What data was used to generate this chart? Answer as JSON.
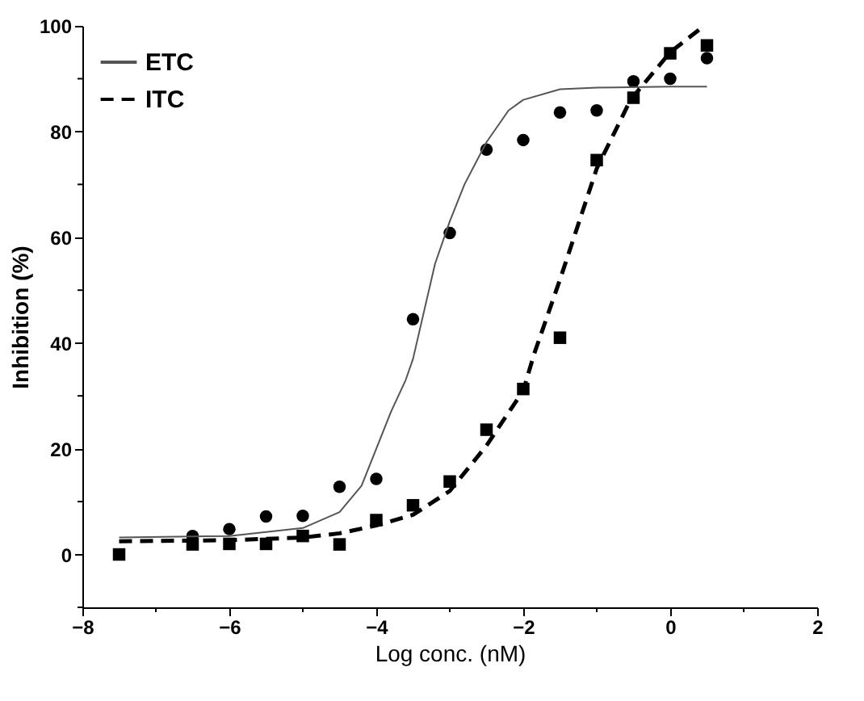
{
  "chart_data": {
    "type": "scatter",
    "xlabel": "Log conc. (nM)",
    "ylabel": "Inhibition (%)",
    "xlim": [
      -8,
      2
    ],
    "ylim": [
      -10,
      100
    ],
    "xticks": [
      -8,
      {
        "value": -7,
        "label": null
      },
      -6,
      {
        "value": -5,
        "label": null
      },
      -4,
      {
        "value": -3,
        "label": null
      },
      -2,
      {
        "value": -1,
        "label": null
      },
      0,
      {
        "value": 1,
        "label": null
      },
      2
    ],
    "yticks": [
      {
        "value": -10,
        "label": null
      },
      0,
      {
        "value": 10,
        "label": null
      },
      20,
      {
        "value": 30,
        "label": null
      },
      40,
      {
        "value": 50,
        "label": null
      },
      60,
      {
        "value": 70,
        "label": null
      },
      80,
      {
        "value": 90,
        "label": null
      },
      100
    ],
    "grid": false,
    "legend": "top left",
    "series": [
      {
        "marker": "circle",
        "color": "#000000",
        "x": [
          -6.5,
          -6,
          -5.5,
          -5,
          -4.5,
          -4,
          -3.5,
          -3,
          -2.5,
          -2,
          -1.5,
          -1,
          -0.5,
          0,
          0.5
        ],
        "values": [
          3.5,
          4.8,
          7.2,
          7.3,
          12.8,
          14.3,
          44.5,
          60.8,
          76.6,
          78.4,
          83.6,
          84,
          89.5,
          90,
          93.9
        ]
      },
      {
        "marker": "square",
        "color": "#000000",
        "x": [
          -7.5,
          -6.5,
          -6,
          -5.5,
          -5,
          -4.5,
          -4,
          -3.5,
          -3,
          -2.5,
          -2,
          -1.5,
          -1,
          -0.5,
          0,
          0.5
        ],
        "values": [
          0,
          1.9,
          2,
          2,
          3.5,
          1.9,
          6.5,
          9.3,
          13.8,
          23.6,
          31.3,
          41,
          74.6,
          86.4,
          94.8,
          96.3
        ]
      },
      {
        "type": "line",
        "name": "ETC",
        "line_style": "solid",
        "color": "#555555",
        "x": [
          -7.5,
          -6,
          -5,
          -4.5,
          -4.2,
          -4,
          -3.8,
          -3.6,
          -3.5,
          -3.2,
          -3,
          -2.8,
          -2.5,
          -2.2,
          -2,
          -1.5,
          -1,
          0,
          0.5
        ],
        "values": [
          3.2,
          3.5,
          5,
          8,
          13,
          20,
          27,
          33,
          37,
          55,
          63,
          70,
          78,
          84,
          86,
          88,
          88.3,
          88.5,
          88.5
        ]
      },
      {
        "type": "line",
        "name": "ITC",
        "line_style": "dashed",
        "color": "#000000",
        "x": [
          -7.5,
          -6,
          -5,
          -4.5,
          -4,
          -3.5,
          -3,
          -2.5,
          -2,
          -1.85,
          -1.5,
          -1,
          -0.54,
          0,
          0.46
        ],
        "values": [
          2.5,
          2.7,
          3.2,
          4,
          5.5,
          7.5,
          12,
          20.6,
          31,
          38,
          52,
          73,
          86,
          95,
          100
        ]
      }
    ]
  }
}
